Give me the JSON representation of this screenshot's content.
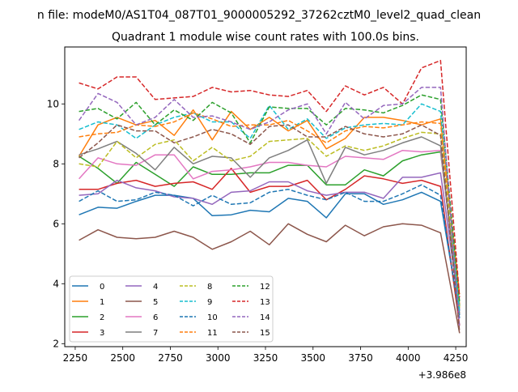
{
  "figure": {
    "suptitle": "n file: modeM0/AS1T04_087T01_9000005292_37262cztM0_level2_quad_clean",
    "title": "Quadrant 1 module wise count rates with 100.0s bins.",
    "x_offset_text": "+3.986e8"
  },
  "chart_data": {
    "type": "line",
    "title": "Quadrant 1 module wise count rates with 100.0s bins.",
    "xlabel": "",
    "ylabel": "",
    "x_offset": 398600000,
    "xlim": [
      2195,
      4305
    ],
    "ylim": [
      1.9,
      11.9
    ],
    "xticks": [
      2250,
      2500,
      2750,
      3000,
      3250,
      3500,
      3750,
      4000,
      4250
    ],
    "xtick_labels": [
      "2250",
      "2500",
      "2750",
      "3000",
      "3250",
      "3500",
      "3750",
      "4000",
      "4250"
    ],
    "yticks": [
      2,
      4,
      6,
      8,
      10
    ],
    "ytick_labels": [
      "2",
      "4",
      "6",
      "8",
      "10"
    ],
    "grid": false,
    "legend": {
      "placement": "lower left",
      "columns": 4
    },
    "x": [
      2270,
      2370,
      2470,
      2570,
      2670,
      2770,
      2870,
      2970,
      3070,
      3170,
      3270,
      3370,
      3470,
      3570,
      3670,
      3770,
      3870,
      3970,
      4070,
      4170,
      4270
    ],
    "series": [
      {
        "name": "0",
        "color": "#1f77b4",
        "dash": "solid",
        "values": [
          6.3,
          6.55,
          6.52,
          6.75,
          6.95,
          6.95,
          6.85,
          6.27,
          6.3,
          6.45,
          6.4,
          6.85,
          6.75,
          6.2,
          7.0,
          7.0,
          6.65,
          6.8,
          7.05,
          6.75,
          2.95
        ]
      },
      {
        "name": "1",
        "color": "#ff7f0e",
        "dash": "solid",
        "values": [
          8.25,
          9.3,
          9.55,
          9.3,
          9.45,
          8.95,
          9.8,
          8.8,
          9.75,
          9.15,
          9.55,
          9.1,
          9.45,
          8.5,
          8.85,
          9.55,
          9.55,
          9.45,
          9.3,
          9.5,
          3.3
        ]
      },
      {
        "name": "2",
        "color": "#2ca02c",
        "dash": "solid",
        "values": [
          8.25,
          7.85,
          7.35,
          8.05,
          7.65,
          7.25,
          7.9,
          7.65,
          7.65,
          7.7,
          7.7,
          7.95,
          7.95,
          7.3,
          7.3,
          7.8,
          7.6,
          8.1,
          8.3,
          8.4,
          3.25
        ]
      },
      {
        "name": "3",
        "color": "#d62728",
        "dash": "solid",
        "values": [
          7.15,
          7.15,
          7.35,
          7.45,
          7.25,
          7.35,
          7.4,
          7.15,
          7.85,
          7.05,
          7.25,
          7.25,
          7.45,
          6.8,
          7.15,
          7.6,
          7.5,
          7.35,
          7.45,
          7.25,
          2.6
        ]
      },
      {
        "name": "4",
        "color": "#9467bd",
        "dash": "solid",
        "values": [
          6.95,
          7.0,
          7.45,
          7.2,
          7.1,
          6.9,
          6.85,
          6.65,
          7.05,
          7.1,
          7.4,
          7.4,
          7.1,
          6.95,
          7.05,
          7.05,
          6.85,
          7.55,
          7.55,
          7.7,
          3.1
        ]
      },
      {
        "name": "5",
        "color": "#8c564b",
        "dash": "solid",
        "values": [
          5.45,
          5.8,
          5.55,
          5.5,
          5.55,
          5.75,
          5.55,
          5.15,
          5.4,
          5.75,
          5.3,
          6.0,
          5.65,
          5.4,
          5.95,
          5.6,
          5.9,
          6.0,
          5.95,
          5.7,
          2.35
        ]
      },
      {
        "name": "6",
        "color": "#e377c2",
        "dash": "solid",
        "values": [
          7.5,
          8.2,
          8.0,
          7.95,
          8.3,
          8.3,
          7.5,
          7.75,
          7.8,
          7.9,
          8.05,
          8.05,
          7.95,
          7.9,
          8.25,
          8.2,
          8.15,
          8.45,
          8.4,
          8.45,
          3.15
        ]
      },
      {
        "name": "7",
        "color": "#7f7f7f",
        "dash": "solid",
        "values": [
          8.3,
          8.5,
          8.75,
          8.35,
          7.8,
          8.55,
          8.0,
          8.25,
          8.2,
          7.55,
          8.2,
          8.45,
          8.8,
          7.35,
          8.55,
          8.3,
          8.45,
          8.7,
          8.9,
          8.6,
          3.0
        ]
      },
      {
        "name": "8",
        "color": "#bcbd22",
        "dash": "dashed",
        "values": [
          8.0,
          7.9,
          8.75,
          8.2,
          8.65,
          8.8,
          8.1,
          8.55,
          8.1,
          8.25,
          8.75,
          8.8,
          8.85,
          8.25,
          8.6,
          8.45,
          8.6,
          8.85,
          9.05,
          9.0,
          3.2
        ]
      },
      {
        "name": "9",
        "color": "#17becf",
        "dash": "dashed",
        "values": [
          9.15,
          9.4,
          9.3,
          8.85,
          9.3,
          9.55,
          9.7,
          9.4,
          9.4,
          8.85,
          9.95,
          9.15,
          9.5,
          8.85,
          9.2,
          9.3,
          9.35,
          9.3,
          10.0,
          9.75,
          3.05
        ]
      },
      {
        "name": "10",
        "color": "#1f77b4",
        "dash": "dashed",
        "values": [
          6.75,
          7.1,
          6.75,
          6.8,
          7.05,
          6.95,
          6.6,
          6.95,
          6.65,
          6.7,
          7.05,
          7.15,
          6.95,
          6.8,
          7.05,
          6.75,
          6.75,
          7.0,
          7.3,
          6.95,
          2.85
        ]
      },
      {
        "name": "11",
        "color": "#ff7f0e",
        "dash": "dashed",
        "values": [
          8.9,
          9.0,
          9.05,
          9.3,
          9.25,
          9.4,
          9.7,
          9.5,
          9.25,
          9.3,
          9.3,
          9.45,
          9.1,
          8.7,
          9.1,
          9.25,
          9.2,
          9.3,
          9.4,
          9.35,
          3.65
        ]
      },
      {
        "name": "12",
        "color": "#2ca02c",
        "dash": "dashed",
        "values": [
          9.75,
          9.85,
          9.5,
          10.05,
          9.3,
          9.8,
          9.45,
          10.05,
          9.7,
          8.7,
          9.9,
          9.85,
          9.85,
          9.3,
          9.85,
          9.8,
          9.7,
          9.95,
          10.3,
          10.15,
          3.4
        ]
      },
      {
        "name": "13",
        "color": "#d62728",
        "dash": "dashed",
        "values": [
          10.7,
          10.5,
          10.9,
          10.9,
          10.15,
          10.2,
          10.25,
          10.55,
          10.4,
          10.45,
          10.3,
          10.25,
          10.45,
          9.75,
          10.6,
          10.3,
          10.55,
          10.0,
          11.2,
          11.45,
          3.55
        ]
      },
      {
        "name": "14",
        "color": "#9467bd",
        "dash": "dashed",
        "values": [
          9.45,
          10.35,
          10.05,
          9.3,
          9.55,
          10.15,
          9.55,
          9.6,
          9.4,
          9.15,
          9.4,
          9.8,
          10.0,
          9.0,
          10.05,
          9.5,
          9.95,
          10.0,
          10.55,
          10.55,
          2.55
        ]
      },
      {
        "name": "15",
        "color": "#8c564b",
        "dash": "dashed",
        "values": [
          8.2,
          8.7,
          9.3,
          9.1,
          9.1,
          8.7,
          8.9,
          9.15,
          9.0,
          8.65,
          9.25,
          9.3,
          8.9,
          8.9,
          9.25,
          9.0,
          8.9,
          9.0,
          9.3,
          8.95,
          2.4
        ]
      }
    ]
  }
}
